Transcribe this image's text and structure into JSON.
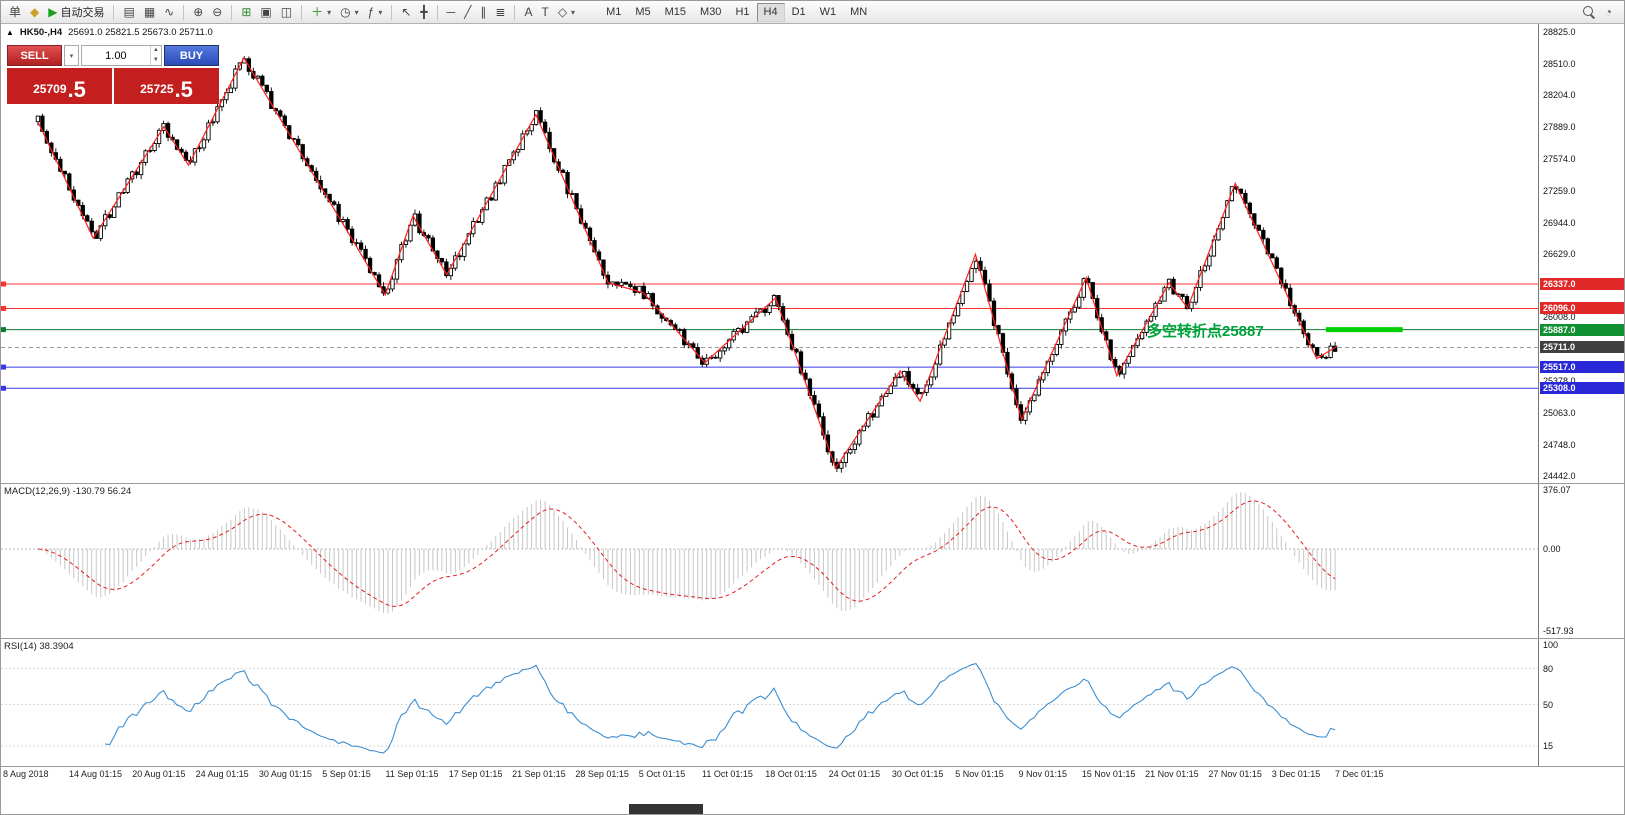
{
  "toolbar": {
    "groups": [
      [
        {
          "name": "new-order-button",
          "glyph": "单"
        },
        {
          "name": "market-watch-button",
          "glyph": "◆",
          "color": "#c9a227"
        },
        {
          "name": "autotrading-button",
          "glyph": "▶",
          "color": "#1fa01f",
          "label": "自动交易"
        }
      ],
      [
        {
          "name": "bars-chart-button",
          "glyph": "▤"
        },
        {
          "name": "candlestick-chart-button",
          "glyph": "▦"
        },
        {
          "name": "line-chart-button",
          "glyph": "∿"
        }
      ],
      [
        {
          "name": "zoom-in-button",
          "glyph": "⊕"
        },
        {
          "name": "zoom-out-button",
          "glyph": "⊖"
        }
      ],
      [
        {
          "name": "grid-button",
          "glyph": "⊞",
          "color": "#2e8b2e"
        },
        {
          "name": "tile-windows-button",
          "glyph": "▣"
        },
        {
          "name": "cascade-windows-button",
          "glyph": "◫"
        }
      ],
      [
        {
          "name": "new-chart-button",
          "glyph": "＋",
          "color": "#2e8b2e",
          "dropdown": true
        },
        {
          "name": "periodicity-button",
          "glyph": "◷",
          "dropdown": true
        },
        {
          "name": "indicators-button",
          "glyph": "ƒ",
          "dropdown": true
        }
      ],
      [
        {
          "name": "cursor-button",
          "glyph": "↖"
        },
        {
          "name": "crosshair-button",
          "glyph": "╋"
        }
      ],
      [
        {
          "name": "horizontal-line-button",
          "glyph": "─"
        },
        {
          "name": "trendline-button",
          "glyph": "╱"
        },
        {
          "name": "channel-button",
          "glyph": "∥"
        },
        {
          "name": "fibonacci-button",
          "glyph": "≣"
        }
      ],
      [
        {
          "name": "text-button",
          "glyph": "A"
        },
        {
          "name": "label-button",
          "glyph": "T"
        },
        {
          "name": "shapes-button",
          "glyph": "◇",
          "dropdown": true
        }
      ]
    ],
    "timeframes": [
      "M1",
      "M5",
      "M15",
      "M30",
      "H1",
      "H4",
      "D1",
      "W1",
      "MN"
    ],
    "active_timeframe": "H4",
    "right_clock_glyph": "◔"
  },
  "symbol_header": {
    "collapse_glyph": "▲",
    "title": "HK50-,H4",
    "ohlc": "25691.0 25821.5 25673.0 25711.0"
  },
  "trade_widget": {
    "sell_label": "SELL",
    "buy_label": "BUY",
    "volume": "1.00",
    "sell_price_main": "25709",
    "sell_price_big": ".5",
    "buy_price_main": "25725",
    "buy_price_big": ".5",
    "sell_button_color": "#c23535",
    "buy_button_color": "#3e68c8",
    "price_panel_color": "#c41f1f"
  },
  "annotation": {
    "text": "多空转折点25887",
    "color": "#00a33c",
    "segment_color": "#00d000"
  },
  "indicators": {
    "macd_label": "MACD(12,26,9) -130.79 56.24",
    "rsi_label": "RSI(14) 38.3904"
  },
  "price_axis": {
    "labels": [
      {
        "text": "28825.0",
        "price": 28825.0
      },
      {
        "text": "28510.0",
        "price": 28510.0
      },
      {
        "text": "28204.0",
        "price": 28204.0
      },
      {
        "text": "27889.0",
        "price": 27889.0
      },
      {
        "text": "27574.0",
        "price": 27574.0
      },
      {
        "text": "27259.0",
        "price": 27259.0
      },
      {
        "text": "26944.0",
        "price": 26944.0
      },
      {
        "text": "26629.0",
        "price": 26629.0
      },
      {
        "text": "26008.0",
        "price": 26008.0
      },
      {
        "text": "25378.0",
        "price": 25378.0
      },
      {
        "text": "25063.0",
        "price": 25063.0
      },
      {
        "text": "24748.0",
        "price": 24748.0
      },
      {
        "text": "24442.0",
        "price": 24442.0
      }
    ],
    "badges": [
      {
        "text": "26337.0",
        "price": 26337.0,
        "bg": "#e02828"
      },
      {
        "text": "26096.0",
        "price": 26096.0,
        "bg": "#e02828"
      },
      {
        "text": "25887.0",
        "price": 25887.0,
        "bg": "#109030"
      },
      {
        "text": "25711.0",
        "price": 25711.0,
        "bg": "#404040"
      },
      {
        "text": "25517.0",
        "price": 25517.0,
        "bg": "#2828d8"
      },
      {
        "text": "25308.0",
        "price": 25308.0,
        "bg": "#2828d8"
      }
    ],
    "macd_labels": [
      {
        "text": "376.07",
        "v": 376.07
      },
      {
        "text": "0.00",
        "v": 0
      },
      {
        "text": "-517.93",
        "v": -517.93
      }
    ],
    "rsi_labels": [
      {
        "text": "100",
        "v": 100
      },
      {
        "text": "80",
        "v": 80
      },
      {
        "text": "50",
        "v": 50
      },
      {
        "text": "15",
        "v": 15
      }
    ]
  },
  "chart_data": {
    "type": "candlestick",
    "symbol": "HK50-",
    "timeframe": "H4",
    "last_price": 25711.0,
    "price_range": [
      24442.0,
      28825.0
    ],
    "candle_count": 290,
    "noise_seed": 88861,
    "zigzag": [
      [
        0.024,
        27940
      ],
      [
        0.06,
        26790
      ],
      [
        0.106,
        27890
      ],
      [
        0.122,
        27510
      ],
      [
        0.158,
        28570
      ],
      [
        0.25,
        26230
      ],
      [
        0.268,
        27010
      ],
      [
        0.29,
        26430
      ],
      [
        0.348,
        28010
      ],
      [
        0.395,
        26350
      ],
      [
        0.418,
        26250
      ],
      [
        0.458,
        25560
      ],
      [
        0.504,
        26200
      ],
      [
        0.543,
        24520
      ],
      [
        0.585,
        25480
      ],
      [
        0.598,
        25180
      ],
      [
        0.634,
        26630
      ],
      [
        0.664,
        25000
      ],
      [
        0.706,
        26400
      ],
      [
        0.726,
        25430
      ],
      [
        0.76,
        26350
      ],
      [
        0.772,
        26100
      ],
      [
        0.803,
        27330
      ],
      [
        0.856,
        25600
      ],
      [
        0.869,
        25720
      ]
    ],
    "hlines": [
      {
        "price": 26337.0,
        "color": "#ff3030",
        "width": 1
      },
      {
        "price": 26096.0,
        "color": "#ff3030",
        "width": 1
      },
      {
        "price": 25887.0,
        "color": "#0e7d2e",
        "width": 1
      },
      {
        "price": 25711.0,
        "color": "#999999",
        "width": 1,
        "dash": true
      },
      {
        "price": 25517.0,
        "color": "#3838e8",
        "width": 1
      },
      {
        "price": 25308.0,
        "color": "#3838e8",
        "width": 1
      }
    ],
    "green_segment": {
      "price": 25887.0,
      "x1": 0.862,
      "x2": 0.912,
      "width": 5
    },
    "macd": {
      "fast": 12,
      "slow": 26,
      "signal": 9,
      "value": -130.79,
      "signal_value": 56.24,
      "axis_max": 376.07,
      "axis_min": -517.93
    },
    "rsi": {
      "period": 14,
      "value": 38.3904,
      "levels": [
        80,
        50,
        15
      ]
    },
    "dates": [
      "8 Aug 2018",
      "14 Aug 01:15",
      "20 Aug 01:15",
      "24 Aug 01:15",
      "30 Aug 01:15",
      "5 Sep 01:15",
      "11 Sep 01:15",
      "17 Sep 01:15",
      "21 Sep 01:15",
      "28 Sep 01:15",
      "5 Oct 01:15",
      "11 Oct 01:15",
      "18 Oct 01:15",
      "24 Oct 01:15",
      "30 Oct 01:15",
      "5 Nov 01:15",
      "9 Nov 01:15",
      "15 Nov 01:15",
      "21 Nov 01:15",
      "27 Nov 01:15",
      "3 Dec 01:15",
      "7 Dec 01:15"
    ]
  }
}
